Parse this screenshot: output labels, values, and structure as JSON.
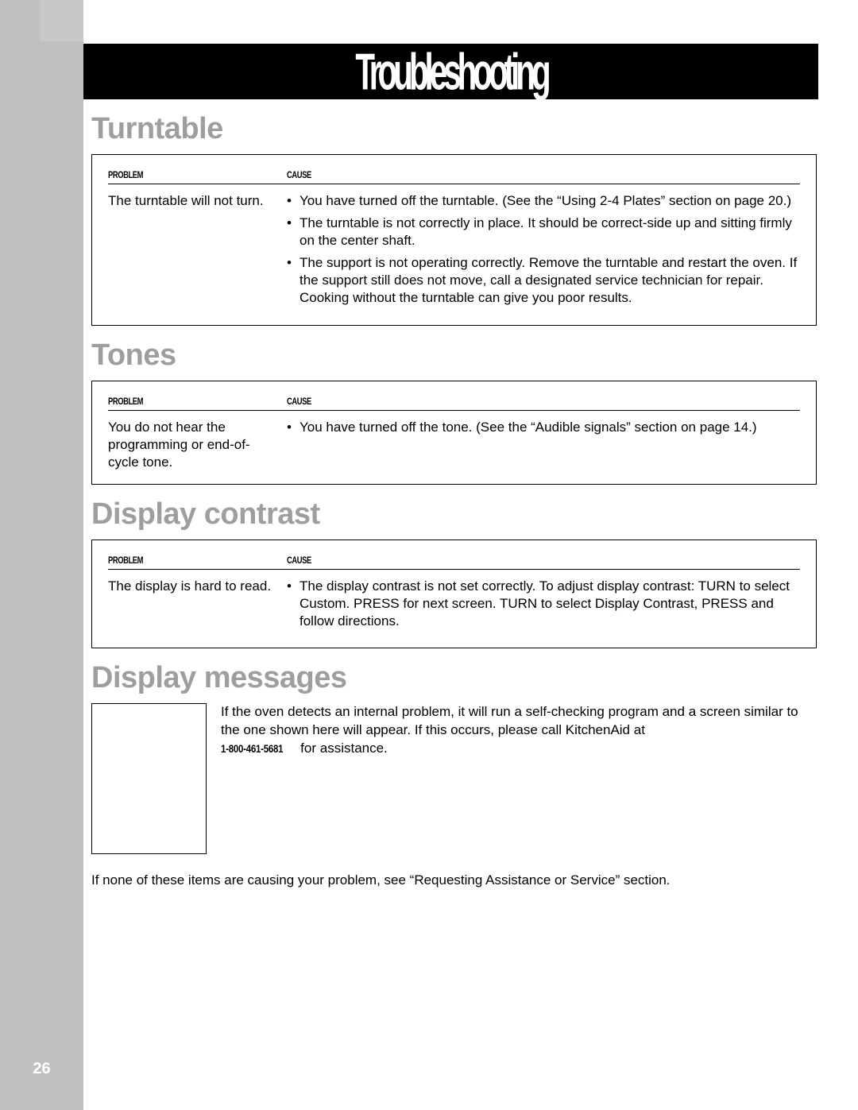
{
  "page_number": "26",
  "banner_title": "Troubleshooting",
  "sections": {
    "turntable": {
      "heading": "Turntable",
      "hdr_problem": "PROBLEM",
      "hdr_cause": "CAUSE",
      "problem": "The turntable will not turn.",
      "causes": [
        "You have turned off the turntable. (See the “Using 2-4 Plates” section on page 20.)",
        "The turntable is not correctly in place. It should be correct-side up and sitting firmly on the center shaft.",
        "The support is not operating correctly. Remove the turntable and restart the oven. If the support still does not move, call a designated service technician for repair. Cooking without the turntable can give you poor results."
      ]
    },
    "tones": {
      "heading": "Tones",
      "hdr_problem": "PROBLEM",
      "hdr_cause": "CAUSE",
      "problem": "You do not hear the programming or end-of-cycle tone.",
      "causes": [
        "You have turned off the tone. (See the “Audible signals” section on page 14.)"
      ]
    },
    "display_contrast": {
      "heading": "Display contrast",
      "hdr_problem": "PROBLEM",
      "hdr_cause": "CAUSE",
      "problem": "The display is hard to read.",
      "causes": [
        "The display contrast is not set correctly. To adjust display contrast: TURN to select Custom. PRESS for next screen. TURN to select Display Contrast, PRESS and follow directions."
      ]
    },
    "display_messages": {
      "heading": "Display messages",
      "body_pre": "If the oven detects an internal problem, it will run a self-checking program and a screen similar to the one shown here will appear. If this occurs, please call KitchenAid at ",
      "phone": "1-800-461-5681",
      "body_post": " for assistance."
    }
  },
  "footer_note": "If none of these items are causing your problem, see “Requesting Assistance or Service” section."
}
